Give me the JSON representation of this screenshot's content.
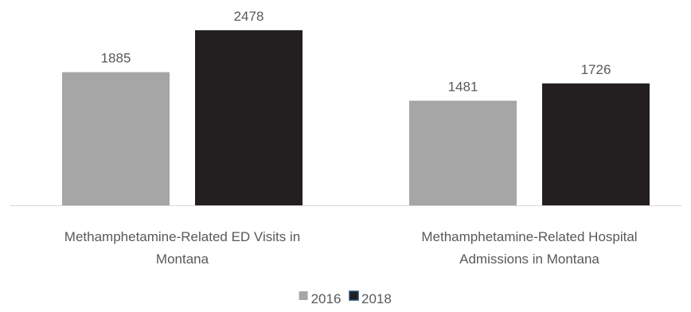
{
  "chart_data": {
    "type": "bar",
    "categories": [
      [
        "Methamphetamine-Related ED Visits in",
        "Montana"
      ],
      [
        "Methamphetamine-Related Hospital",
        "Admissions in Montana"
      ]
    ],
    "series": [
      {
        "name": "2016",
        "color": "#a6a6a6",
        "values": [
          1885,
          1481
        ]
      },
      {
        "name": "2018",
        "color": "#231f20",
        "values": [
          2478,
          1726
        ]
      }
    ],
    "data_labels": true,
    "legend_position": "bottom",
    "grid": false,
    "ylim": [
      0,
      2478
    ],
    "label_color": "#595959",
    "axis_color": "#d9d9d9"
  }
}
